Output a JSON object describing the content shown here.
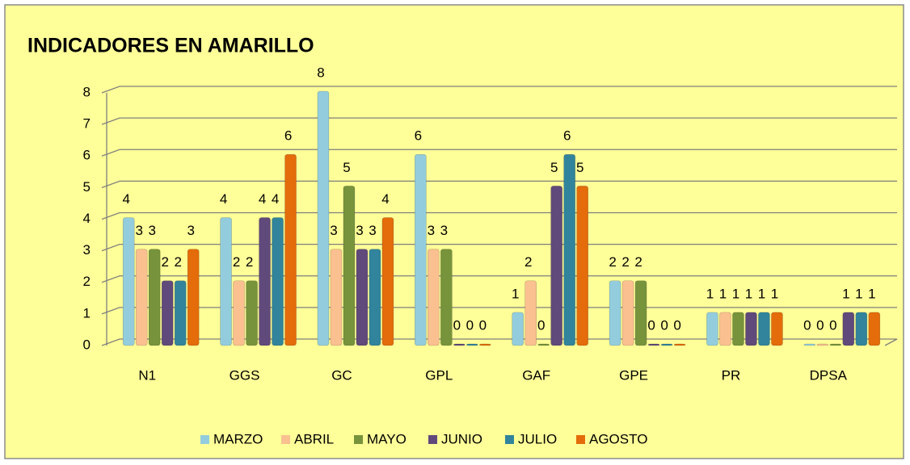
{
  "chart_data": {
    "type": "bar",
    "title": "INDICADORES EN AMARILLO",
    "categories": [
      "N1",
      "GGS",
      "GC",
      "GPL",
      "GAF",
      "GPE",
      "PR",
      "DPSA"
    ],
    "series": [
      {
        "name": "MARZO",
        "color": "#93cddd",
        "values": [
          4,
          4,
          8,
          6,
          1,
          2,
          1,
          0
        ]
      },
      {
        "name": "ABRIL",
        "color": "#fac090",
        "values": [
          3,
          2,
          3,
          3,
          2,
          2,
          1,
          0
        ]
      },
      {
        "name": "MAYO",
        "color": "#77933c",
        "values": [
          3,
          2,
          5,
          3,
          0,
          2,
          1,
          0
        ]
      },
      {
        "name": "JUNIO",
        "color": "#604a7b",
        "values": [
          2,
          4,
          3,
          0,
          5,
          0,
          1,
          1
        ]
      },
      {
        "name": "JULIO",
        "color": "#31849b",
        "values": [
          2,
          4,
          3,
          0,
          6,
          0,
          1,
          1
        ]
      },
      {
        "name": "AGOSTO",
        "color": "#e46c0a",
        "values": [
          3,
          6,
          4,
          0,
          5,
          0,
          1,
          1
        ]
      }
    ],
    "ylim": [
      0,
      8
    ],
    "yticks": [
      0,
      1,
      2,
      3,
      4,
      5,
      6,
      7,
      8
    ],
    "grid": true,
    "legend": "bottom"
  }
}
